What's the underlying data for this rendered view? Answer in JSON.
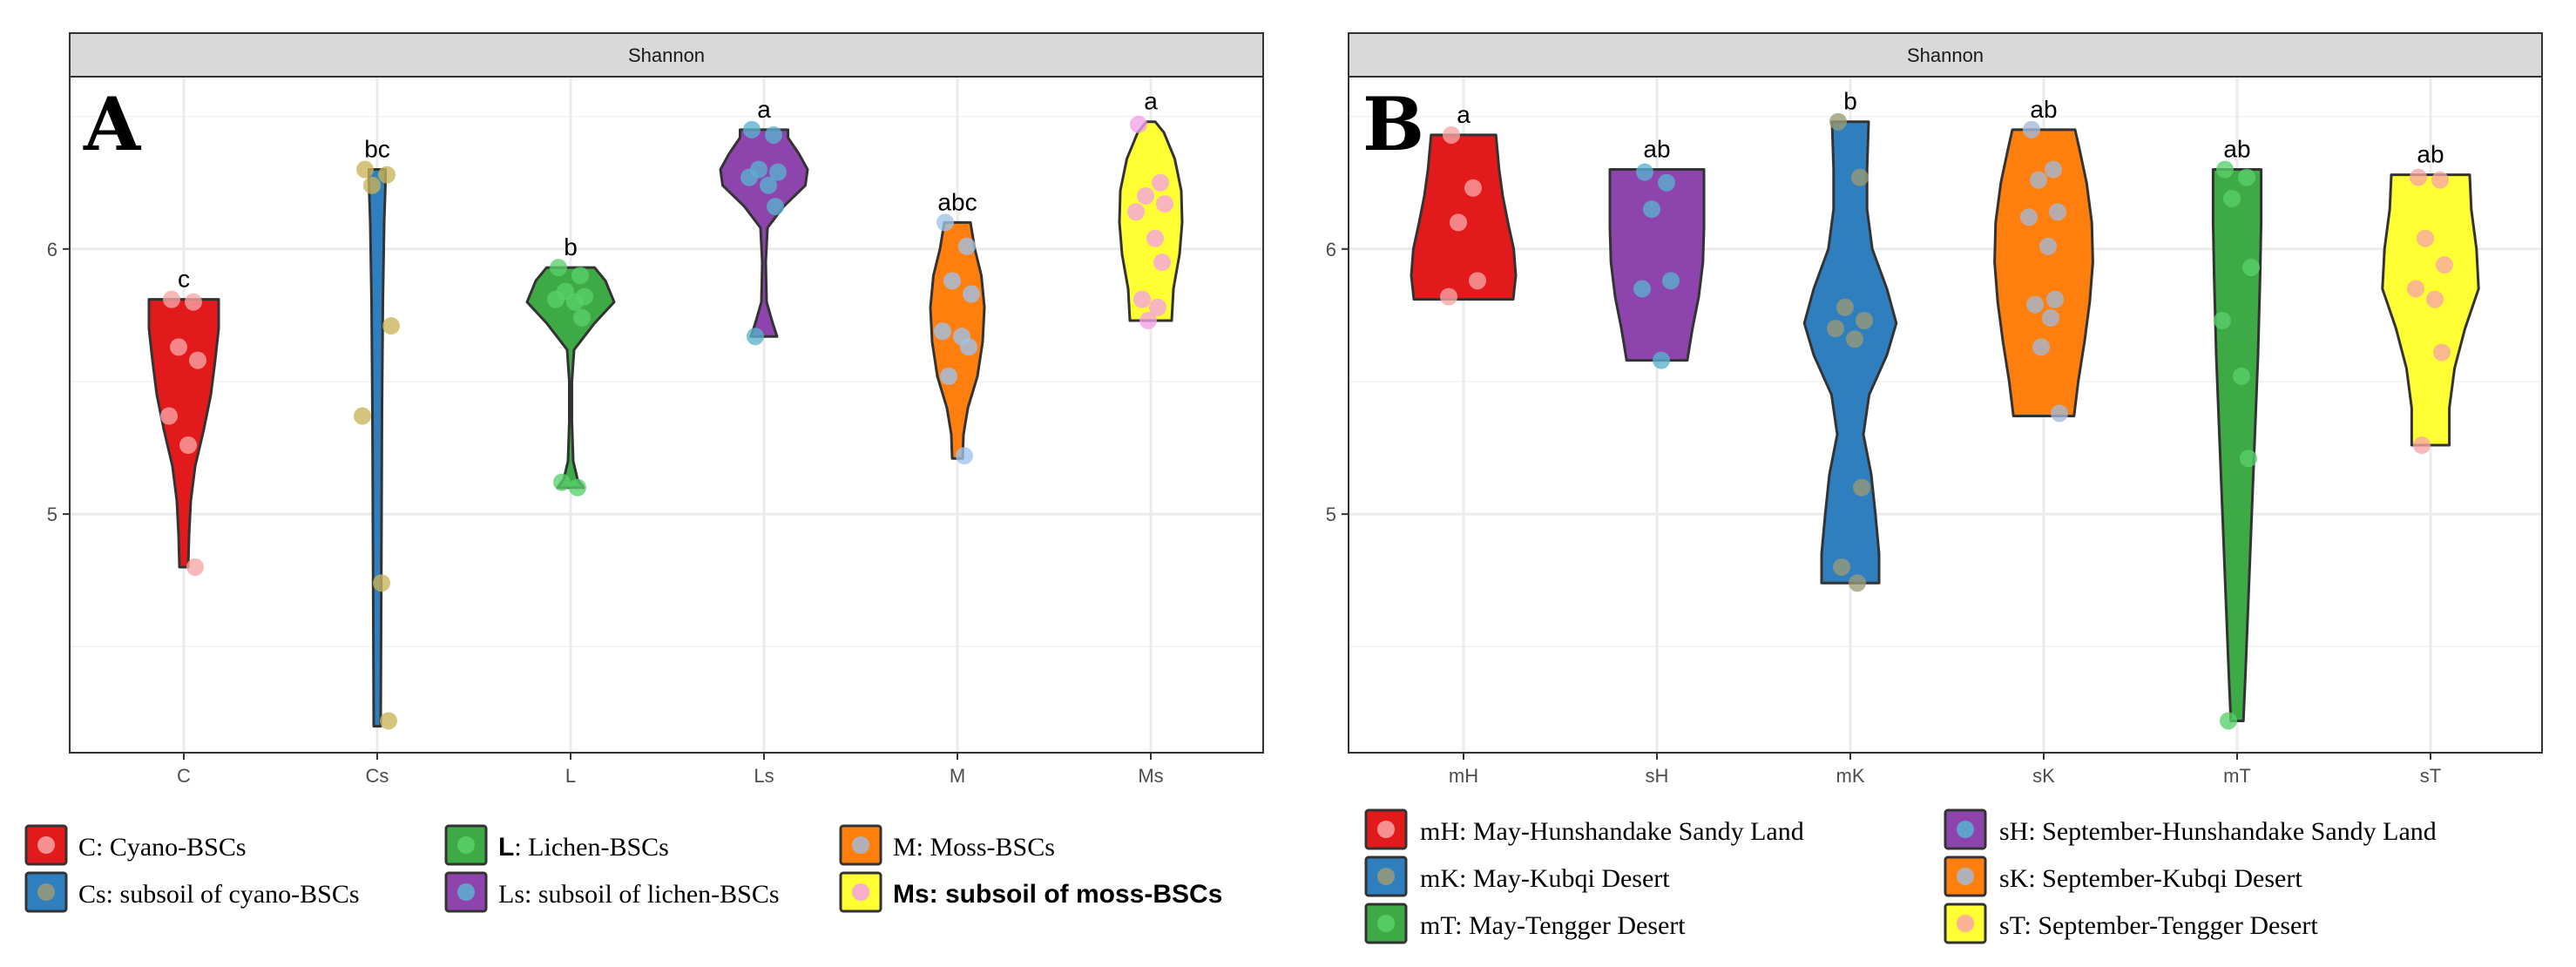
{
  "chart_data": [
    {
      "panel_letter": "A",
      "strip_title": "Shannon",
      "type": "violin",
      "ylim": [
        4.1,
        6.65
      ],
      "y_ticks": [
        5,
        6
      ],
      "y_tick_labels": [
        "5",
        "6"
      ],
      "categories": [
        "C",
        "Cs",
        "L",
        "Ls",
        "M",
        "Ms"
      ],
      "groups": [
        {
          "label": "C",
          "sig": "c",
          "color": "#e31a1c",
          "point_color": "#f8a5a5",
          "min": 4.8,
          "max": 5.81,
          "shape": [
            [
              4.8,
              0.1
            ],
            [
              4.92,
              0.12
            ],
            [
              5.05,
              0.16
            ],
            [
              5.18,
              0.26
            ],
            [
              5.32,
              0.46
            ],
            [
              5.45,
              0.62
            ],
            [
              5.58,
              0.72
            ],
            [
              5.7,
              0.8
            ],
            [
              5.81,
              0.8
            ]
          ],
          "points": [
            5.81,
            5.8,
            5.63,
            5.58,
            5.37,
            5.26,
            4.8
          ]
        },
        {
          "label": "Cs",
          "sig": "bc",
          "color": "#2f7fbf",
          "point_color": "#c9b45a",
          "min": 4.2,
          "max": 6.3,
          "shape": [
            [
              4.2,
              0.08
            ],
            [
              4.6,
              0.09
            ],
            [
              5.0,
              0.1
            ],
            [
              5.4,
              0.11
            ],
            [
              5.8,
              0.13
            ],
            [
              6.1,
              0.16
            ],
            [
              6.25,
              0.19
            ],
            [
              6.3,
              0.19
            ]
          ],
          "points": [
            6.3,
            6.28,
            6.24,
            5.71,
            5.37,
            4.74,
            4.22
          ]
        },
        {
          "label": "L",
          "sig": "b",
          "color": "#3eaa45",
          "point_color": "#5ad06a",
          "min": 5.1,
          "max": 5.93,
          "shape": [
            [
              5.1,
              0.3
            ],
            [
              5.13,
              0.16
            ],
            [
              5.2,
              0.06
            ],
            [
              5.35,
              0.03
            ],
            [
              5.5,
              0.03
            ],
            [
              5.62,
              0.08
            ],
            [
              5.72,
              0.55
            ],
            [
              5.8,
              1.0
            ],
            [
              5.88,
              0.8
            ],
            [
              5.93,
              0.55
            ]
          ],
          "points": [
            5.93,
            5.9,
            5.84,
            5.82,
            5.81,
            5.8,
            5.74,
            5.12,
            5.1
          ]
        },
        {
          "label": "Ls",
          "sig": "a",
          "color": "#8e44ad",
          "point_color": "#5ab1d0",
          "min": 5.67,
          "max": 6.45,
          "shape": [
            [
              5.67,
              0.3
            ],
            [
              5.72,
              0.2
            ],
            [
              5.8,
              0.06
            ],
            [
              5.95,
              0.04
            ],
            [
              6.08,
              0.08
            ],
            [
              6.16,
              0.45
            ],
            [
              6.24,
              0.95
            ],
            [
              6.3,
              1.0
            ],
            [
              6.36,
              0.8
            ],
            [
              6.42,
              0.55
            ],
            [
              6.45,
              0.55
            ]
          ],
          "points": [
            6.45,
            6.43,
            6.3,
            6.29,
            6.27,
            6.24,
            6.16,
            5.67
          ]
        },
        {
          "label": "M",
          "sig": "abc",
          "color": "#ff7f0e",
          "point_color": "#9ec3ec",
          "min": 5.21,
          "max": 6.1,
          "shape": [
            [
              5.21,
              0.12
            ],
            [
              5.3,
              0.14
            ],
            [
              5.4,
              0.24
            ],
            [
              5.52,
              0.46
            ],
            [
              5.65,
              0.58
            ],
            [
              5.78,
              0.62
            ],
            [
              5.9,
              0.55
            ],
            [
              6.0,
              0.4
            ],
            [
              6.1,
              0.3
            ]
          ],
          "points": [
            6.1,
            6.01,
            5.88,
            5.83,
            5.69,
            5.67,
            5.63,
            5.52,
            5.22
          ]
        },
        {
          "label": "Ms",
          "sig": "a",
          "color": "#ffff33",
          "point_color": "#f5a0e8",
          "min": 5.73,
          "max": 6.48,
          "shape": [
            [
              5.73,
              0.48
            ],
            [
              5.85,
              0.52
            ],
            [
              5.98,
              0.66
            ],
            [
              6.1,
              0.72
            ],
            [
              6.22,
              0.7
            ],
            [
              6.34,
              0.55
            ],
            [
              6.44,
              0.3
            ],
            [
              6.48,
              0.1
            ]
          ],
          "points": [
            6.47,
            6.25,
            6.2,
            6.17,
            6.14,
            6.04,
            5.95,
            5.81,
            5.78,
            5.73
          ]
        }
      ]
    },
    {
      "panel_letter": "B",
      "strip_title": "Shannon",
      "type": "violin",
      "ylim": [
        4.1,
        6.65
      ],
      "y_ticks": [
        5,
        6
      ],
      "y_tick_labels": [
        "5",
        "6"
      ],
      "categories": [
        "mH",
        "sH",
        "mK",
        "sK",
        "mT",
        "sT"
      ],
      "groups": [
        {
          "label": "mH",
          "sig": "a",
          "color": "#e31a1c",
          "point_color": "#f8a5a5",
          "min": 5.81,
          "max": 6.43,
          "shape": [
            [
              5.81,
              0.95
            ],
            [
              5.9,
              1.0
            ],
            [
              6.0,
              0.96
            ],
            [
              6.1,
              0.85
            ],
            [
              6.2,
              0.75
            ],
            [
              6.3,
              0.68
            ],
            [
              6.43,
              0.62
            ]
          ],
          "points": [
            6.43,
            6.23,
            6.1,
            5.88,
            5.82
          ]
        },
        {
          "label": "sH",
          "sig": "ab",
          "color": "#8e44ad",
          "point_color": "#5ab1d0",
          "min": 5.58,
          "max": 6.3,
          "shape": [
            [
              5.58,
              0.58
            ],
            [
              5.7,
              0.68
            ],
            [
              5.82,
              0.8
            ],
            [
              5.95,
              0.88
            ],
            [
              6.08,
              0.9
            ],
            [
              6.2,
              0.9
            ],
            [
              6.3,
              0.9
            ]
          ],
          "points": [
            6.29,
            6.25,
            6.15,
            5.88,
            5.85,
            5.58
          ]
        },
        {
          "label": "mK",
          "sig": "b",
          "color": "#2f7fbf",
          "point_color": "#9a9a76",
          "min": 4.74,
          "max": 6.48,
          "shape": [
            [
              4.74,
              0.55
            ],
            [
              4.85,
              0.55
            ],
            [
              5.0,
              0.48
            ],
            [
              5.15,
              0.4
            ],
            [
              5.3,
              0.25
            ],
            [
              5.45,
              0.36
            ],
            [
              5.6,
              0.7
            ],
            [
              5.72,
              0.88
            ],
            [
              5.85,
              0.7
            ],
            [
              6.0,
              0.42
            ],
            [
              6.15,
              0.32
            ],
            [
              6.3,
              0.32
            ],
            [
              6.48,
              0.35
            ]
          ],
          "points": [
            6.48,
            6.27,
            5.78,
            5.73,
            5.7,
            5.66,
            5.1,
            4.8,
            4.74
          ]
        },
        {
          "label": "sK",
          "sig": "ab",
          "color": "#ff7f0e",
          "point_color": "#a3b9d6",
          "min": 5.37,
          "max": 6.45,
          "shape": [
            [
              5.37,
              0.58
            ],
            [
              5.5,
              0.66
            ],
            [
              5.65,
              0.78
            ],
            [
              5.8,
              0.88
            ],
            [
              5.95,
              0.94
            ],
            [
              6.1,
              0.92
            ],
            [
              6.25,
              0.82
            ],
            [
              6.38,
              0.68
            ],
            [
              6.45,
              0.6
            ]
          ],
          "points": [
            6.45,
            6.3,
            6.26,
            6.14,
            6.12,
            6.01,
            5.81,
            5.79,
            5.74,
            5.63,
            5.38
          ]
        },
        {
          "label": "mT",
          "sig": "ab",
          "color": "#3eaa45",
          "point_color": "#5ad06a",
          "min": 4.22,
          "max": 6.3,
          "shape": [
            [
              4.22,
              0.12
            ],
            [
              4.4,
              0.16
            ],
            [
              4.7,
              0.22
            ],
            [
              5.0,
              0.28
            ],
            [
              5.3,
              0.34
            ],
            [
              5.6,
              0.4
            ],
            [
              5.9,
              0.44
            ],
            [
              6.1,
              0.46
            ],
            [
              6.3,
              0.46
            ]
          ],
          "points": [
            6.3,
            6.27,
            6.19,
            5.93,
            5.73,
            5.52,
            5.21,
            4.22
          ]
        },
        {
          "label": "sT",
          "sig": "ab",
          "color": "#ffff33",
          "point_color": "#f8a5a5",
          "min": 5.26,
          "max": 6.28,
          "shape": [
            [
              5.26,
              0.36
            ],
            [
              5.4,
              0.36
            ],
            [
              5.55,
              0.46
            ],
            [
              5.7,
              0.66
            ],
            [
              5.85,
              0.92
            ],
            [
              6.0,
              0.88
            ],
            [
              6.15,
              0.78
            ],
            [
              6.28,
              0.75
            ]
          ],
          "points": [
            6.27,
            6.26,
            6.04,
            5.94,
            5.85,
            5.81,
            5.61,
            5.26
          ]
        }
      ]
    }
  ],
  "legend_A": [
    {
      "code": "C",
      "desc": ": Cyano-BSCs",
      "color": "#e31a1c",
      "dot": "#f8a5a5",
      "style": "serif"
    },
    {
      "code": "Cs",
      "desc": ": subsoil of cyano-BSCs",
      "color": "#2f7fbf",
      "dot": "#9a9a76",
      "style": "serif"
    },
    {
      "code": "L",
      "desc": ": Lichen-BSCs",
      "color": "#3eaa45",
      "dot": "#5ad06a",
      "style": "mixed"
    },
    {
      "code": "Ls",
      "desc": ": subsoil of lichen-BSCs",
      "color": "#8e44ad",
      "dot": "#5ab1d0",
      "style": "serif"
    },
    {
      "code": "M",
      "desc": ": Moss-BSCs",
      "color": "#ff7f0e",
      "dot": "#a3b9d6",
      "style": "serif"
    },
    {
      "code": "Ms",
      "desc": ": subsoil of moss-BSCs",
      "color": "#ffff33",
      "dot": "#f5a0e8",
      "style": "bold"
    }
  ],
  "legend_B": [
    {
      "code": "mH",
      "desc": ": May-Hunshandake Sandy Land",
      "color": "#e31a1c",
      "dot": "#f8a5a5"
    },
    {
      "code": "mK",
      "desc": ": May-Kubqi Desert",
      "color": "#2f7fbf",
      "dot": "#9a9a76"
    },
    {
      "code": "mT",
      "desc": ": May-Tengger Desert",
      "color": "#3eaa45",
      "dot": "#5ad06a"
    },
    {
      "code": "sH",
      "desc": ": September-Hunshandake Sandy Land",
      "color": "#8e44ad",
      "dot": "#5ab1d0"
    },
    {
      "code": "sK",
      "desc": ": September-Kubqi Desert",
      "color": "#ff7f0e",
      "dot": "#a3b9d6"
    },
    {
      "code": "sT",
      "desc": ": September-Tengger Desert",
      "color": "#ffff33",
      "dot": "#f8a5a5"
    }
  ]
}
